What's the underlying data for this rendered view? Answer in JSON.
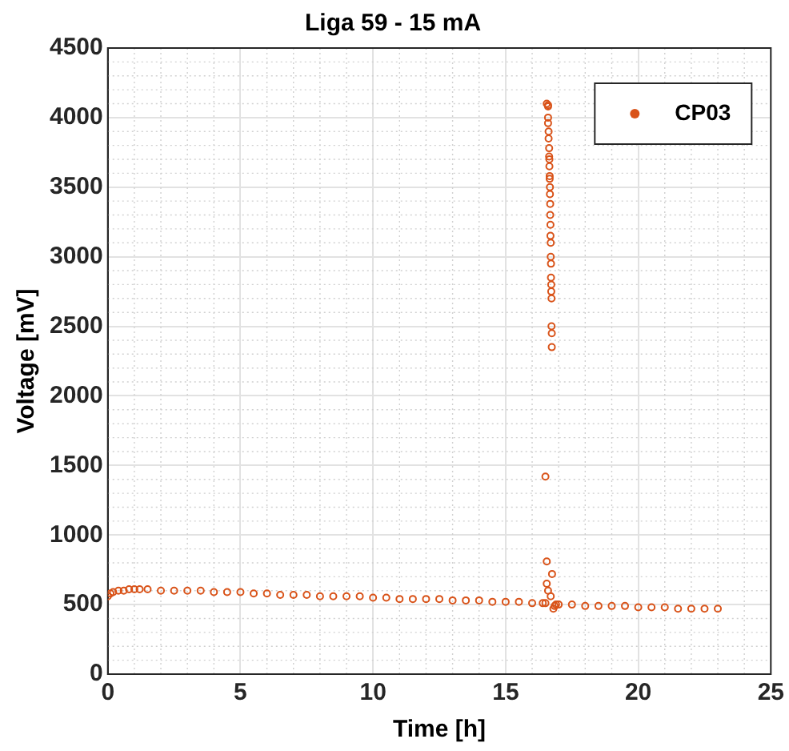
{
  "chart_data": {
    "type": "scatter",
    "title": "Liga 59 - 15 mA",
    "xlabel": "Time [h]",
    "ylabel": "Voltage [mV]",
    "xlim": [
      0,
      25
    ],
    "xticks": [
      0,
      5,
      10,
      15,
      20,
      25
    ],
    "ylim": [
      0,
      4500
    ],
    "yticks": [
      0,
      500,
      1000,
      1500,
      2000,
      2500,
      3000,
      3500,
      4000,
      4500
    ],
    "grid": true,
    "legend": "top right",
    "marker": "circle",
    "series": [
      {
        "name": "CP03",
        "color": "#d95319",
        "x": [
          0,
          0.1,
          0.2,
          0.4,
          0.6,
          0.8,
          1,
          1.2,
          1.5,
          2,
          2.5,
          3,
          3.5,
          4,
          4.5,
          5,
          5.5,
          6,
          6.5,
          7,
          7.5,
          8,
          8.5,
          9,
          9.5,
          10,
          10.5,
          11,
          11.5,
          12,
          12.5,
          13,
          13.5,
          14,
          14.5,
          15,
          15.5,
          16,
          16.4,
          16.5,
          16.55,
          16.55,
          16.6,
          16.6,
          16.6,
          16.6,
          16.62,
          16.62,
          16.64,
          16.64,
          16.65,
          16.65,
          16.66,
          16.66,
          16.67,
          16.67,
          16.68,
          16.68,
          16.69,
          16.69,
          16.7,
          16.7,
          16.71,
          16.71,
          16.72,
          16.72,
          16.73,
          16.73,
          16.74,
          16.74,
          16.5,
          16.55,
          16.75,
          16.6,
          16.7,
          16.8,
          16.85,
          16.9,
          17,
          17.5,
          18,
          18.5,
          19,
          19.5,
          20,
          20.5,
          21,
          21.5,
          22,
          22.5,
          23
        ],
        "values": [
          560,
          580,
          590,
          600,
          600,
          610,
          610,
          610,
          610,
          600,
          600,
          600,
          600,
          590,
          590,
          590,
          580,
          580,
          570,
          570,
          570,
          560,
          560,
          560,
          560,
          550,
          550,
          540,
          540,
          540,
          540,
          530,
          530,
          530,
          520,
          520,
          520,
          510,
          510,
          510,
          650,
          4100,
          4090,
          4080,
          4000,
          3960,
          3900,
          3850,
          3780,
          3720,
          3700,
          3650,
          3580,
          3560,
          3500,
          3450,
          3380,
          3300,
          3230,
          3150,
          3100,
          3000,
          2950,
          2850,
          2800,
          2750,
          2700,
          2500,
          2450,
          2350,
          1420,
          810,
          720,
          600,
          560,
          470,
          490,
          500,
          500,
          500,
          490,
          490,
          490,
          490,
          480,
          480,
          480,
          470,
          470,
          470,
          470
        ]
      }
    ]
  }
}
